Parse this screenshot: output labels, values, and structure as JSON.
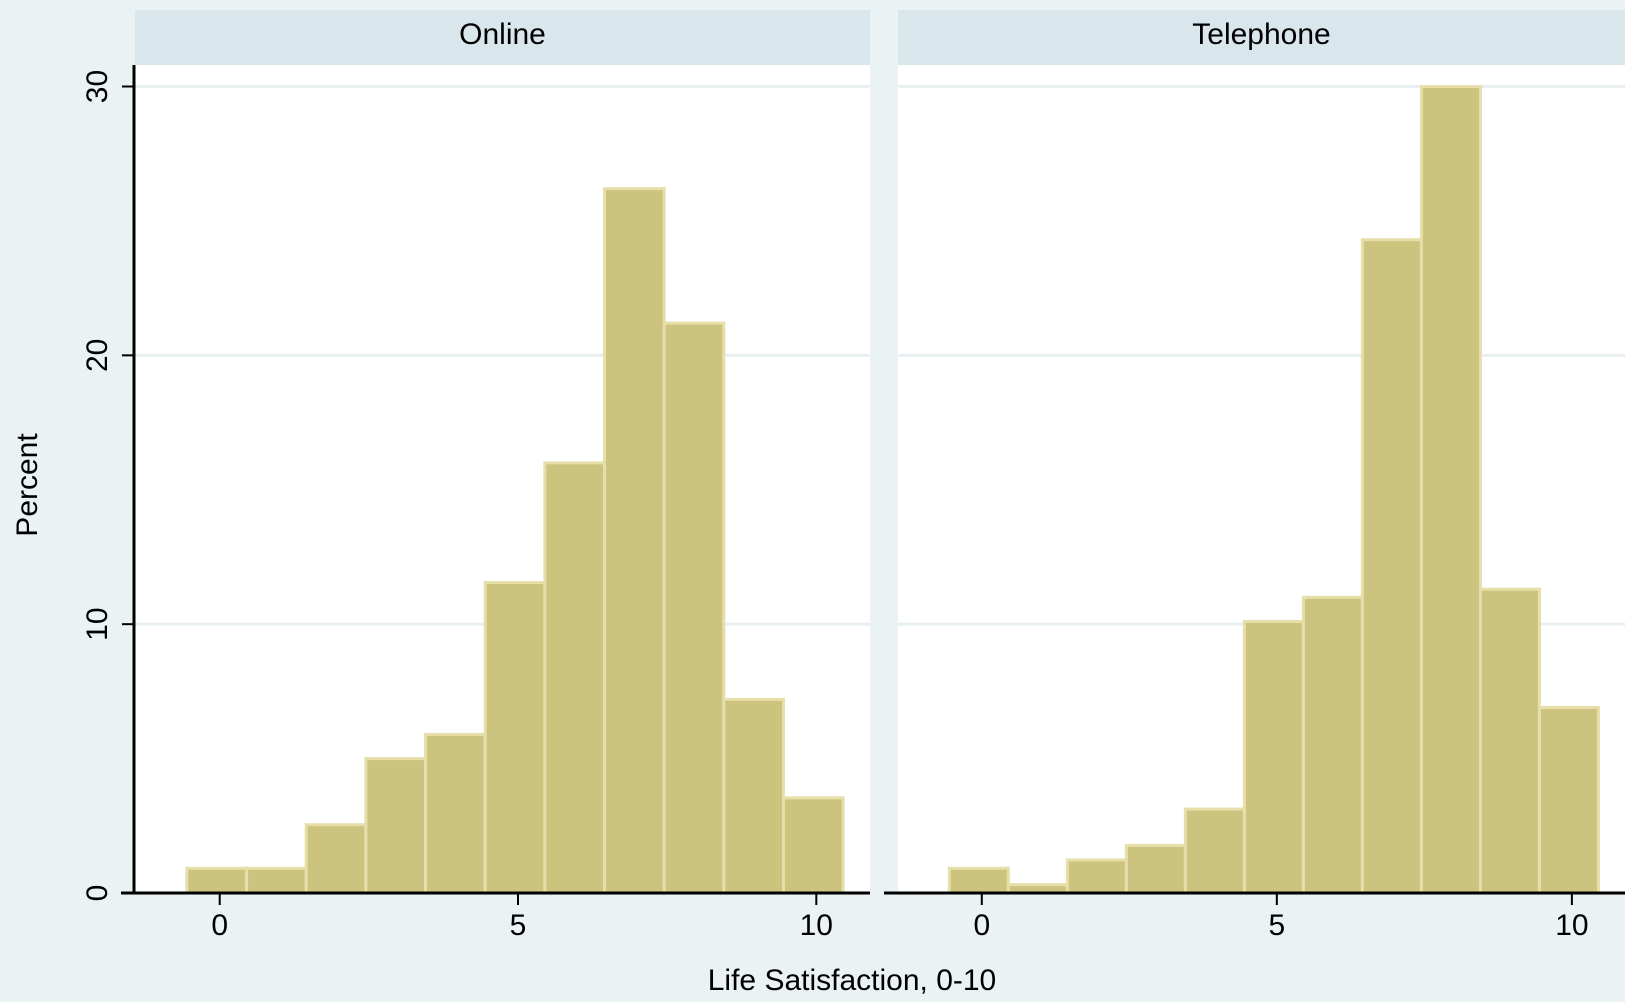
{
  "chart_data": {
    "type": "histogram",
    "ylabel": "Percent",
    "xlabel": "Life Satisfaction, 0-10",
    "bins": [
      -0.55,
      0.45,
      1.45,
      2.45,
      3.45,
      4.45,
      5.45,
      6.45,
      7.45,
      8.45,
      9.45,
      10.45
    ],
    "xlim": [
      -1.42,
      10.9
    ],
    "xticks": [
      0,
      5,
      10
    ],
    "ylim": [
      0,
      30.8
    ],
    "yticks": [
      0,
      10,
      20,
      30
    ],
    "grid": true,
    "color": "#ccc37f",
    "panels": [
      {
        "title": "Online",
        "values": [
          0.92,
          0.92,
          2.54,
          5.0,
          5.9,
          11.55,
          16.0,
          26.2,
          21.2,
          7.2,
          3.54
        ]
      },
      {
        "title": "Telephone",
        "values": [
          0.92,
          0.31,
          1.23,
          1.77,
          3.12,
          10.1,
          11.0,
          24.3,
          30.0,
          11.3,
          6.9
        ]
      }
    ]
  }
}
